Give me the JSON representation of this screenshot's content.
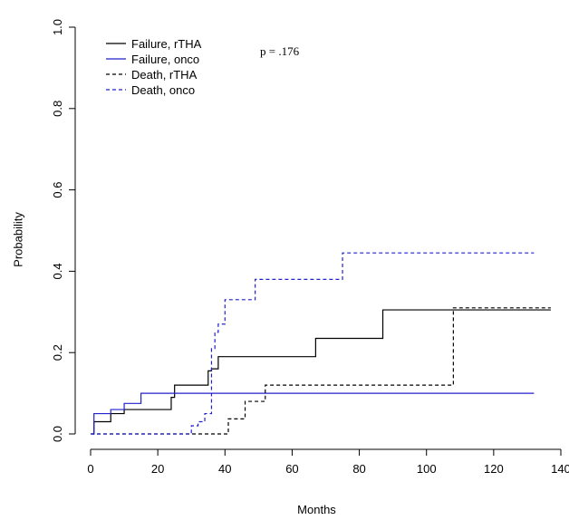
{
  "chart_data": {
    "type": "line",
    "step": true,
    "xlabel": "Months",
    "ylabel": "Probability",
    "xlim": [
      0,
      140
    ],
    "ylim": [
      0,
      1
    ],
    "xticks": [
      0,
      20,
      40,
      60,
      80,
      100,
      120,
      140
    ],
    "yticks": [
      0.0,
      0.2,
      0.4,
      0.6,
      0.8,
      1.0
    ],
    "xtick_labels": [
      "0",
      "20",
      "40",
      "60",
      "80",
      "100",
      "120",
      "140"
    ],
    "ytick_labels": [
      "0.0",
      "0.2",
      "0.4",
      "0.6",
      "0.8",
      "1.0"
    ],
    "grid": false,
    "legend_position": "top-left",
    "annotation": "p = .176",
    "series": [
      {
        "name": "Failure, rTHA",
        "color": "#000000",
        "dash": "solid",
        "x": [
          0.5,
          1,
          6,
          10,
          24,
          25,
          35,
          36,
          38,
          67,
          87,
          137
        ],
        "y": [
          0,
          0.03,
          0.05,
          0.06,
          0.09,
          0.12,
          0.155,
          0.16,
          0.19,
          0.235,
          0.305,
          0.305
        ]
      },
      {
        "name": "Failure, onco",
        "color": "#2222cc",
        "dash": "solid",
        "x": [
          0.5,
          1,
          6,
          10,
          15,
          132
        ],
        "y": [
          0,
          0.05,
          0.06,
          0.075,
          0.1,
          0.1
        ]
      },
      {
        "name": "Death, rTHA",
        "color": "#000000",
        "dash": "dashed",
        "x": [
          0,
          41,
          46,
          52,
          108,
          137
        ],
        "y": [
          0,
          0.037,
          0.08,
          0.12,
          0.31,
          0.31
        ]
      },
      {
        "name": "Death, onco",
        "color": "#2222cc",
        "dash": "dashed",
        "x": [
          0,
          30,
          32,
          34,
          36,
          37,
          38,
          40,
          49,
          75,
          132
        ],
        "y": [
          0,
          0.02,
          0.03,
          0.05,
          0.21,
          0.25,
          0.27,
          0.33,
          0.38,
          0.445,
          0.445
        ]
      }
    ]
  }
}
